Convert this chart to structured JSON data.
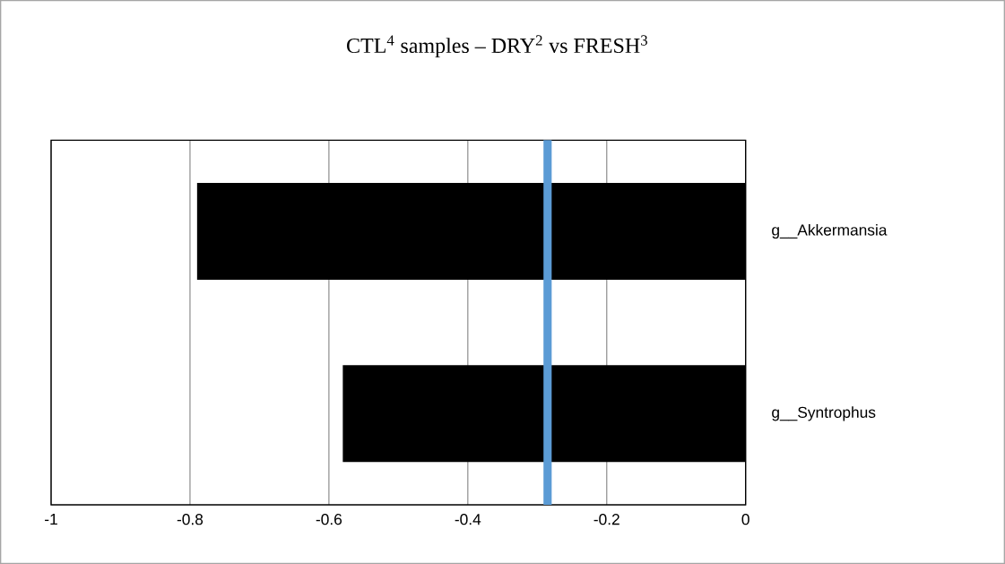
{
  "chart_data": {
    "type": "bar",
    "orientation": "horizontal",
    "title": "CTL$^{4}$ samples – DRY$^{2}$ vs FRESH$^{3}$",
    "categories": [
      "g__Akkermansia",
      "g__Syntrophus"
    ],
    "values": [
      -0.79,
      -0.58
    ],
    "color": "#000000",
    "xlim": [
      -1,
      0
    ],
    "xticks": [
      -1,
      -0.8,
      -0.6,
      -0.4,
      -0.2,
      0
    ],
    "grid": "x",
    "ref_lines": [
      {
        "axis": "x",
        "value": -0.285,
        "color": "#5b9bd5"
      }
    ]
  }
}
